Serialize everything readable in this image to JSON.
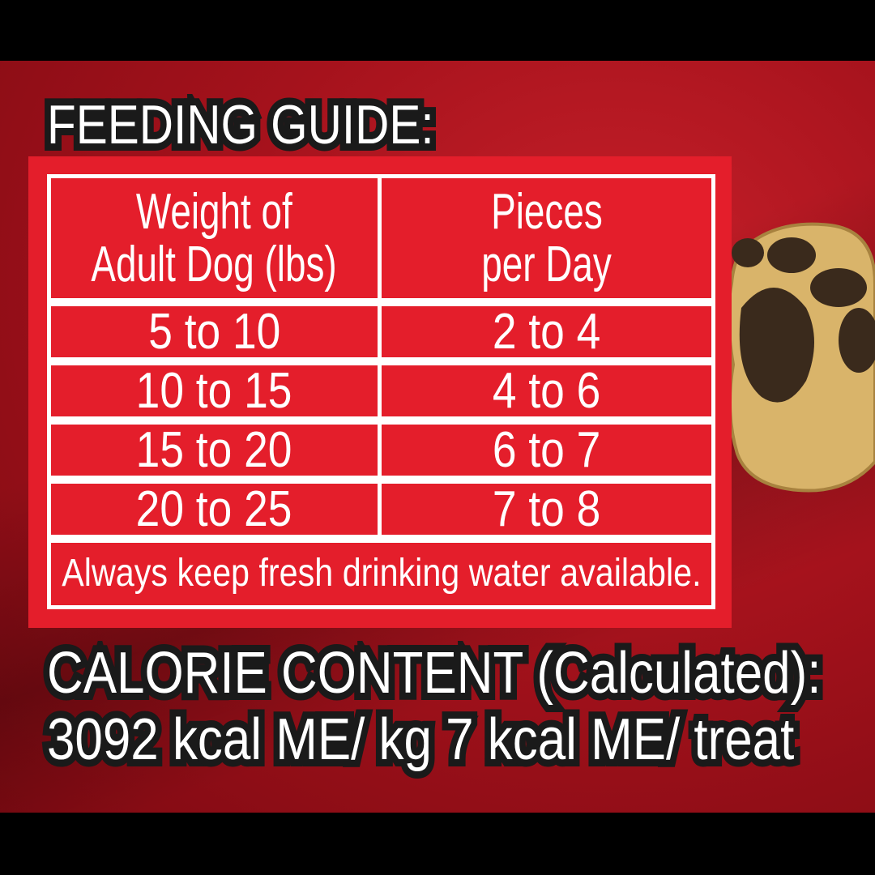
{
  "title": "FEEDING GUIDE:",
  "table": {
    "headers": [
      "Weight of\nAdult Dog (lbs)",
      "Pieces\nper Day"
    ],
    "header_lines": [
      [
        "Weight of",
        "Adult Dog (lbs)"
      ],
      [
        "Pieces",
        "per Day"
      ]
    ],
    "rows": [
      [
        "5 to 10",
        "2 to 4"
      ],
      [
        "10 to 15",
        "4 to 6"
      ],
      [
        "15 to 20",
        "6 to 7"
      ],
      [
        "20 to 25",
        "7 to 8"
      ]
    ],
    "footer": "Always keep fresh drinking water available."
  },
  "calorie": {
    "line1": "CALORIE CONTENT (Calculated):",
    "line2": "3092 kcal ME/ kg 7 kcal ME/ treat"
  },
  "colors": {
    "panel": "#e41e2b",
    "background": "#a5121c",
    "text": "#ffffff",
    "outline": "#1a1a1a"
  },
  "image": {
    "icon": "paw-print-treat"
  }
}
